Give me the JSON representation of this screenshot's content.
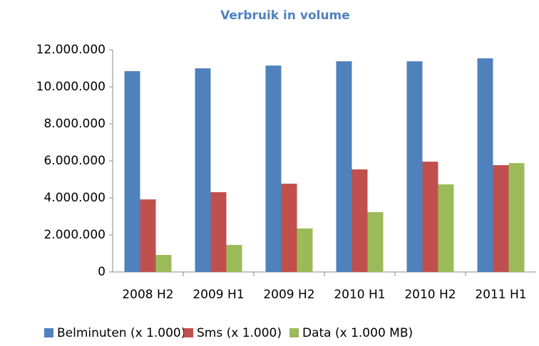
{
  "chart_data": {
    "type": "bar",
    "title": "Verbruik in volume",
    "categories": [
      "2008 H2",
      "2009 H1",
      "2009 H2",
      "2010 H1",
      "2010 H2",
      "2011 H1"
    ],
    "series": [
      {
        "name": "Belminuten (x 1.000)",
        "color": "#4f81bd",
        "values": [
          10850000,
          11000000,
          11150000,
          11380000,
          11380000,
          11540000
        ]
      },
      {
        "name": "Sms (x 1.000)",
        "color": "#c0504d",
        "values": [
          3920000,
          4310000,
          4770000,
          5540000,
          5960000,
          5770000
        ]
      },
      {
        "name": "Data (x 1.000 MB)",
        "color": "#9bbb59",
        "values": [
          920000,
          1460000,
          2350000,
          3230000,
          4730000,
          5880000
        ]
      }
    ],
    "ylim": [
      0,
      12000000
    ],
    "yticks": [
      0,
      {
        "value": 2000000,
        "label": "2.000.000"
      },
      {
        "value": 4000000,
        "label": "4.000.000"
      },
      {
        "value": 6000000,
        "label": "6.000.000"
      },
      {
        "value": 8000000,
        "label": "8.000.000"
      },
      {
        "value": 10000000,
        "label": "10.000.000"
      },
      {
        "value": 12000000,
        "label": "12.000.000"
      }
    ],
    "grid": false,
    "legend": "bottom"
  }
}
